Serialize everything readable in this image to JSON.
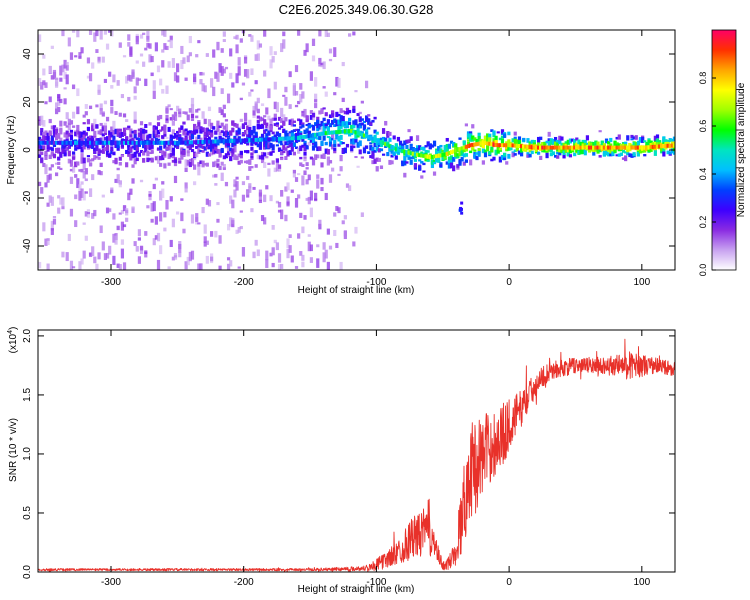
{
  "title": "C2E6.2025.349.06.30.G28",
  "chart_data": [
    {
      "type": "heatmap",
      "id": "spectrogram",
      "xlabel": "Height of straight line (km)",
      "ylabel": "Frequency (Hz)",
      "xlim": [
        -355,
        125
      ],
      "ylim": [
        -50,
        50
      ],
      "xticks": [
        -300,
        -200,
        -100,
        0,
        100
      ],
      "yticks": [
        -40,
        -20,
        0,
        20,
        40
      ],
      "colorbar": {
        "label": "Normalized spectral amplitude",
        "range": [
          0.0,
          1.0
        ],
        "ticks": [
          "0.0",
          "0.2",
          "0.4",
          "0.6",
          "0.8"
        ],
        "tick_values": [
          0.0,
          0.2,
          0.4,
          0.6,
          0.8
        ],
        "colormap": [
          "#ffffff",
          "#c8a2f0",
          "#8a2be2",
          "#3d00ff",
          "#0040ff",
          "#00bfff",
          "#00e5c0",
          "#00ff00",
          "#a0ff00",
          "#ffff00",
          "#ffa500",
          "#ff3000",
          "#ff0066"
        ]
      },
      "ridge": {
        "x": [
          -355,
          -300,
          -250,
          -200,
          -160,
          -140,
          -120,
          -100,
          -85,
          -70,
          -60,
          -50,
          -40,
          -30,
          -20,
          -10,
          0,
          20,
          50,
          80,
          100,
          125
        ],
        "f": [
          3,
          3,
          3,
          4,
          5,
          7,
          8,
          4,
          0,
          -2,
          -3,
          -2,
          0,
          2,
          3,
          2,
          2,
          1,
          1,
          1,
          1,
          2
        ],
        "amplitude": [
          0.25,
          0.28,
          0.28,
          0.3,
          0.35,
          0.45,
          0.5,
          0.45,
          0.5,
          0.55,
          0.6,
          0.65,
          0.7,
          0.75,
          0.8,
          0.8,
          0.75,
          0.8,
          0.8,
          0.8,
          0.8,
          0.8
        ]
      }
    },
    {
      "type": "line",
      "id": "snr",
      "xlabel": "Height of straight line (km)",
      "ylabel": "SNR (10 * v/v)",
      "yscale_label": "(x10",
      "yscale_exp": "4",
      "yscale_close": ")",
      "xlim": [
        -355,
        125
      ],
      "ylim": [
        0.0,
        2.05
      ],
      "xticks": [
        -300,
        -200,
        -100,
        0,
        100
      ],
      "yticks": [
        "0.0",
        "0.5",
        "1.0",
        "1.5",
        "2.0"
      ],
      "ytick_values": [
        0.0,
        0.5,
        1.0,
        1.5,
        2.0
      ],
      "color": "#e8312a",
      "envelope": {
        "x": [
          -355,
          -150,
          -110,
          -100,
          -90,
          -80,
          -75,
          -70,
          -65,
          -60,
          -55,
          -50,
          -45,
          -40,
          -35,
          -30,
          -25,
          -20,
          -15,
          -10,
          -5,
          0,
          10,
          20,
          30,
          50,
          70,
          90,
          110,
          125
        ],
        "mean": [
          0.02,
          0.02,
          0.03,
          0.06,
          0.12,
          0.2,
          0.28,
          0.3,
          0.33,
          0.38,
          0.18,
          0.05,
          0.08,
          0.2,
          0.5,
          0.85,
          0.9,
          1.0,
          1.05,
          1.1,
          1.15,
          1.25,
          1.4,
          1.6,
          1.7,
          1.75,
          1.75,
          1.75,
          1.75,
          1.72
        ],
        "noise": [
          0.01,
          0.01,
          0.02,
          0.05,
          0.08,
          0.12,
          0.18,
          0.18,
          0.2,
          0.25,
          0.1,
          0.04,
          0.06,
          0.15,
          0.35,
          0.4,
          0.4,
          0.35,
          0.3,
          0.3,
          0.28,
          0.22,
          0.15,
          0.1,
          0.08,
          0.07,
          0.07,
          0.12,
          0.07,
          0.06
        ]
      }
    }
  ]
}
